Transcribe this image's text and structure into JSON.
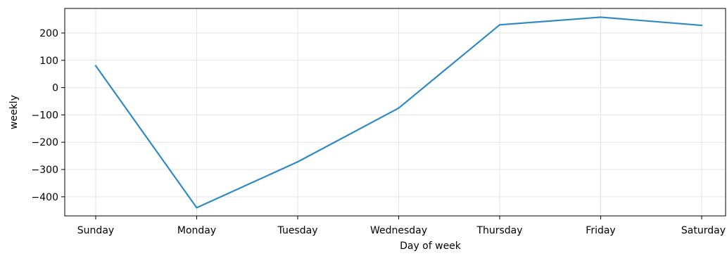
{
  "chart_data": {
    "type": "line",
    "title": "",
    "xlabel": "Day of week",
    "ylabel": "weekly",
    "categories": [
      "Sunday",
      "Monday",
      "Tuesday",
      "Wednesday",
      "Thursday",
      "Friday",
      "Saturday"
    ],
    "series": [
      {
        "values": [
          80,
          -440,
          -272,
          -75,
          230,
          258,
          228
        ],
        "color": "#2f8ac4"
      }
    ],
    "ylim": [
      -470,
      290
    ],
    "yticks": [
      -400,
      -300,
      -200,
      -100,
      0,
      100,
      200
    ],
    "ytick_labels": [
      "−400",
      "−300",
      "−200",
      "−100",
      "0",
      "100",
      "200"
    ],
    "grid": true,
    "legend": "none"
  }
}
